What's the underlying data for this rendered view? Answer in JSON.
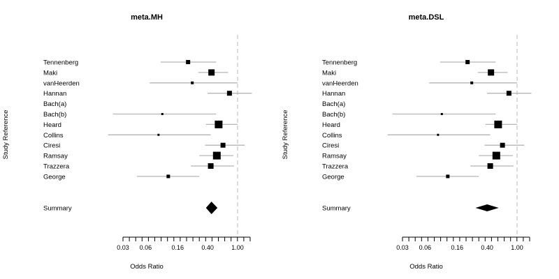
{
  "chart_data": [
    {
      "type": "forest",
      "title": "meta.MH",
      "ylabel": "Study Reference",
      "xlabel": "Odds Ratio",
      "xscale": "log",
      "xticks": [
        "0.03",
        "0.06",
        "0.16",
        "0.40",
        "1.00"
      ],
      "reference_line": 1.0,
      "studies": [
        {
          "label": "Tennenberg",
          "or": 0.22,
          "lo": 0.095,
          "hi": 0.52,
          "weight": 6
        },
        {
          "label": "Maki",
          "or": 0.45,
          "lo": 0.3,
          "hi": 0.75,
          "weight": 9
        },
        {
          "label": "vanHeerden",
          "or": 0.25,
          "lo": 0.068,
          "hi": 1.0,
          "weight": 4
        },
        {
          "label": "Hannan",
          "or": 0.78,
          "lo": 0.4,
          "hi": 1.55,
          "weight": 7
        },
        {
          "label": "Bach(a)",
          "or": null,
          "lo": null,
          "hi": null,
          "weight": 0
        },
        {
          "label": "Bach(b)",
          "or": 0.1,
          "lo": 0.022,
          "hi": 0.52,
          "weight": 3
        },
        {
          "label": "Heard",
          "or": 0.56,
          "lo": 0.38,
          "hi": 1.0,
          "weight": 11
        },
        {
          "label": "Collins",
          "or": 0.089,
          "lo": 0.019,
          "hi": 0.44,
          "weight": 3
        },
        {
          "label": "Ciresi",
          "or": 0.64,
          "lo": 0.37,
          "hi": 1.25,
          "weight": 7
        },
        {
          "label": "Ramsay",
          "or": 0.53,
          "lo": 0.31,
          "hi": 0.88,
          "weight": 11
        },
        {
          "label": "Trazzera",
          "or": 0.44,
          "lo": 0.24,
          "hi": 0.9,
          "weight": 8
        },
        {
          "label": "George",
          "or": 0.12,
          "lo": 0.046,
          "hi": 0.31,
          "weight": 5
        }
      ],
      "summary": {
        "label": "Summary",
        "or": 0.45,
        "lo": 0.38,
        "hi": 0.54
      }
    },
    {
      "type": "forest",
      "title": "meta.DSL",
      "ylabel": "Study Reference",
      "xlabel": "Odds Ratio",
      "xscale": "log",
      "xticks": [
        "0.03",
        "0.06",
        "0.16",
        "0.40",
        "1.00"
      ],
      "reference_line": 1.0,
      "studies": [
        {
          "label": "Tennenberg",
          "or": 0.22,
          "lo": 0.095,
          "hi": 0.52,
          "weight": 6
        },
        {
          "label": "Maki",
          "or": 0.45,
          "lo": 0.3,
          "hi": 0.75,
          "weight": 9
        },
        {
          "label": "vanHeerden",
          "or": 0.25,
          "lo": 0.068,
          "hi": 1.0,
          "weight": 4
        },
        {
          "label": "Hannan",
          "or": 0.78,
          "lo": 0.4,
          "hi": 1.55,
          "weight": 7
        },
        {
          "label": "Bach(a)",
          "or": null,
          "lo": null,
          "hi": null,
          "weight": 0
        },
        {
          "label": "Bach(b)",
          "or": 0.1,
          "lo": 0.022,
          "hi": 0.52,
          "weight": 3
        },
        {
          "label": "Heard",
          "or": 0.56,
          "lo": 0.38,
          "hi": 1.0,
          "weight": 11
        },
        {
          "label": "Collins",
          "or": 0.089,
          "lo": 0.019,
          "hi": 0.44,
          "weight": 3
        },
        {
          "label": "Ciresi",
          "or": 0.64,
          "lo": 0.37,
          "hi": 1.25,
          "weight": 7
        },
        {
          "label": "Ramsay",
          "or": 0.53,
          "lo": 0.31,
          "hi": 0.88,
          "weight": 11
        },
        {
          "label": "Trazzera",
          "or": 0.44,
          "lo": 0.24,
          "hi": 0.9,
          "weight": 8
        },
        {
          "label": "George",
          "or": 0.12,
          "lo": 0.046,
          "hi": 0.31,
          "weight": 5
        }
      ],
      "summary": {
        "label": "Summary",
        "or": 0.4,
        "lo": 0.28,
        "hi": 0.57
      }
    }
  ],
  "colors": {
    "ci_line": "#b5b5b5",
    "marker": "#000000",
    "reference_line": "#cccccc",
    "axis": "#000000"
  }
}
